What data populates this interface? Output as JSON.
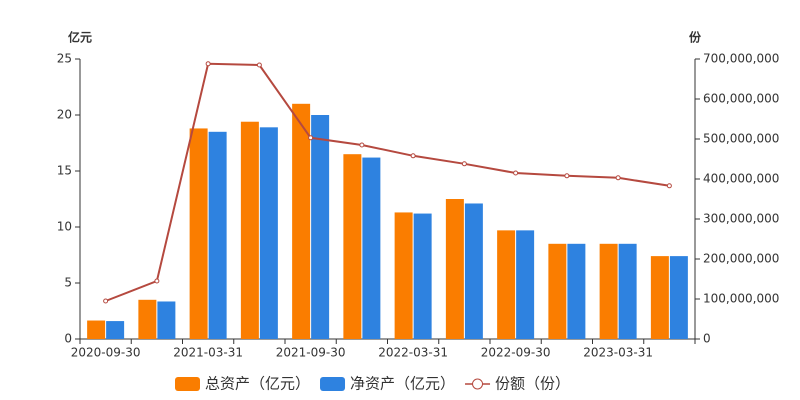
{
  "chart_data": {
    "type": "bar_line",
    "y_label": "亿元",
    "y2_label": "份",
    "categories": [
      "2020-09-30",
      null,
      "2021-03-31",
      null,
      "2021-09-30",
      null,
      "2022-03-31",
      null,
      "2022-09-30",
      null,
      "2023-03-31",
      null
    ],
    "series": [
      {
        "name": "总资产（亿元）",
        "type": "bar",
        "color": "#fa7d00",
        "values": [
          1.65,
          3.5,
          18.8,
          19.4,
          21.0,
          16.5,
          11.3,
          12.5,
          9.7,
          8.5,
          8.5,
          7.4
        ]
      },
      {
        "name": "净资产（亿元）",
        "type": "bar",
        "color": "#2e82e0",
        "values": [
          1.6,
          3.35,
          18.5,
          18.9,
          20.0,
          16.2,
          11.2,
          12.1,
          9.7,
          8.5,
          8.5,
          7.4
        ]
      },
      {
        "name": "份额（份）",
        "type": "line",
        "axis": "y2",
        "color": "#b5493f",
        "values": [
          95000000,
          145000000,
          688000000,
          685000000,
          503000000,
          485000000,
          458000000,
          438000000,
          415000000,
          408000000,
          403000000,
          383000000
        ]
      }
    ],
    "ylim": [
      0,
      25
    ],
    "yticks": [
      0,
      5,
      10,
      15,
      20,
      25
    ],
    "y2lim": [
      0,
      700000000
    ],
    "y2ticks": [
      0,
      {
        "value": 100000000,
        "label": "100,000,000"
      },
      {
        "value": 200000000,
        "label": "200,000,000"
      },
      {
        "value": 300000000,
        "label": "300,000,000"
      },
      {
        "value": 400000000,
        "label": "400,000,000"
      },
      {
        "value": 500000000,
        "label": "500,000,000"
      },
      {
        "value": 600000000,
        "label": "600,000,000"
      },
      {
        "value": 700000000,
        "label": "700,000,000"
      }
    ]
  }
}
